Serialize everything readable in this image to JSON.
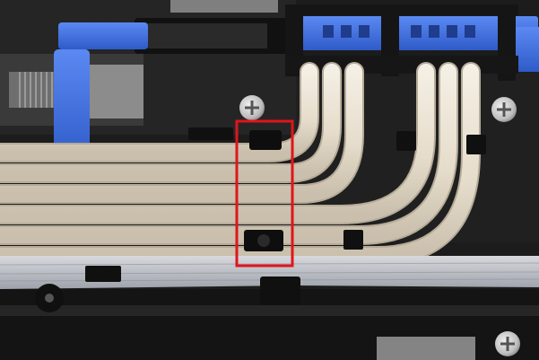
{
  "scene": {
    "subject": "printer-ink-tube-assembly",
    "colors": {
      "chassis": "#1c1c1c",
      "chassis_light": "#2e2e2e",
      "tube": "#e9e1d1",
      "tube_shadow": "#c9bfac",
      "clip_blue": "#3f6fe0",
      "highlight_box": "#e0151b",
      "ribbon_cable": "#b9bcc2",
      "screw": "#cfcfcf"
    },
    "icons": [
      "screw-icon",
      "clip-icon"
    ],
    "highlight": {
      "shape": "rectangle",
      "purpose": "tube-holder-clip"
    }
  }
}
